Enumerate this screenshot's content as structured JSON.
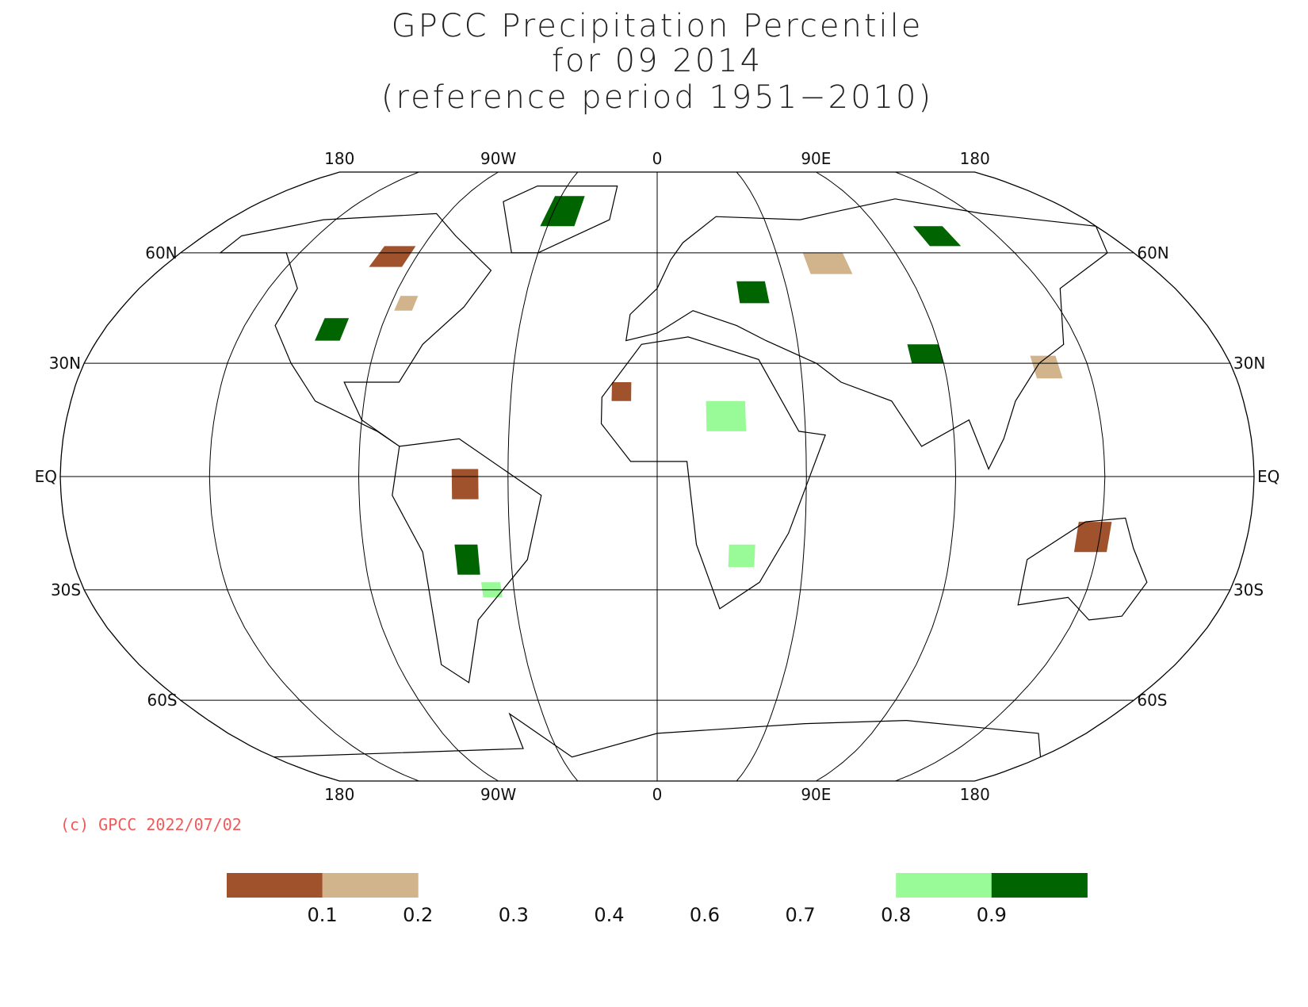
{
  "title": [
    "GPCC Precipitation Percentile",
    "for 09 2014",
    "(reference period 1951−2010)"
  ],
  "map": {
    "lon_labels": [
      {
        "value": -180,
        "label": "180"
      },
      {
        "value": -90,
        "label": "90W"
      },
      {
        "value": 0,
        "label": "0"
      },
      {
        "value": 90,
        "label": "90E"
      },
      {
        "value": 180,
        "label": "180"
      }
    ],
    "lat_labels": [
      {
        "value": 60,
        "label": "60N"
      },
      {
        "value": 30,
        "label": "30N"
      },
      {
        "value": 0,
        "label": "EQ"
      },
      {
        "value": -30,
        "label": "30S"
      },
      {
        "value": -60,
        "label": "60S"
      }
    ],
    "meridians": [
      -135,
      -90,
      -45,
      0,
      45,
      90,
      135
    ]
  },
  "credit": "(c) GPCC 2022/07/02",
  "colorbar": {
    "ticks": [
      0.1,
      0.2,
      0.3,
      0.4,
      0.6,
      0.7,
      0.8,
      0.9
    ],
    "colors": [
      "#a0522d",
      "#d2b48c",
      null,
      null,
      null,
      null,
      null,
      "#98fb98",
      "#006400"
    ]
  }
}
